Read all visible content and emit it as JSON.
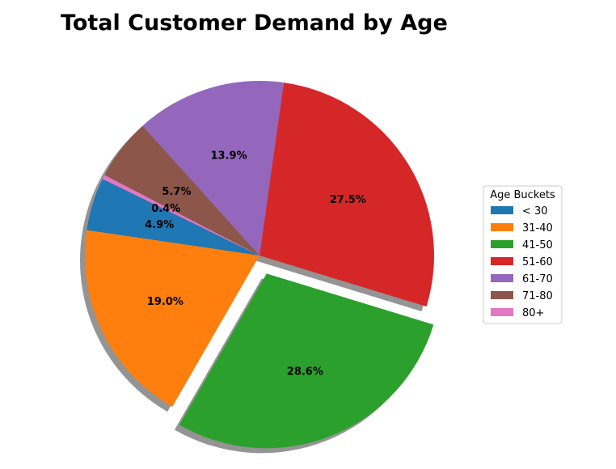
{
  "chart_data": {
    "type": "pie",
    "title": "Total Customer Demand by Age",
    "categories": [
      "< 30",
      "31-40",
      "41-50",
      "51-60",
      "61-70",
      "71-80",
      "80+"
    ],
    "values": [
      4.9,
      19.0,
      28.6,
      27.5,
      13.9,
      5.7,
      0.4
    ],
    "value_labels": [
      "4.9%",
      "19.0%",
      "28.6%",
      "27.5%",
      "13.9%",
      "5.7%",
      "0.4%"
    ],
    "colors": [
      "#1f77b4",
      "#ff7f0e",
      "#2ca02c",
      "#d62728",
      "#9467bd",
      "#8c564b",
      "#e377c2"
    ],
    "exploded": [
      "41-50"
    ],
    "shadow": true,
    "legend": {
      "title": "Age Buckets",
      "placement": "right"
    }
  }
}
